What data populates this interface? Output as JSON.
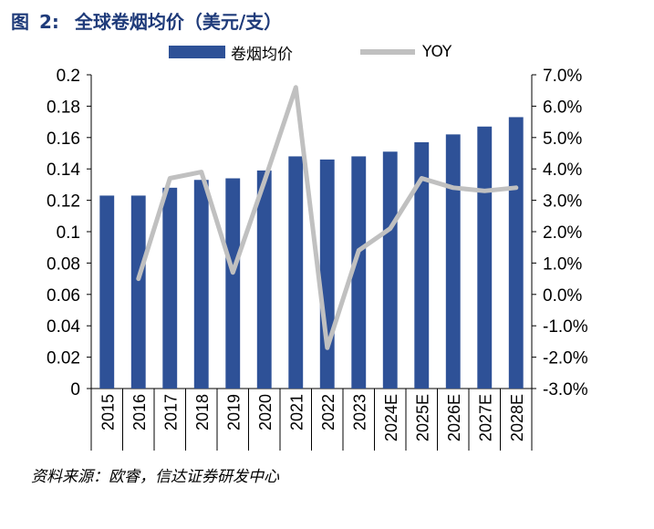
{
  "figure": {
    "label": "图",
    "number": "2:",
    "title": "全球卷烟均价（美元/支）"
  },
  "legend": {
    "bar_label": "卷烟均价",
    "line_label": "YOY"
  },
  "source": "资料来源：欧睿，信达证券研发中心",
  "colors": {
    "bar": "#2e5197",
    "line": "#c0c0c0",
    "title": "#1f3b7a"
  },
  "chart_data": {
    "type": "bar",
    "categories": [
      "2015",
      "2016",
      "2017",
      "2018",
      "2019",
      "2020",
      "2021",
      "2022",
      "2023",
      "2024E",
      "2025E",
      "2026E",
      "2027E",
      "2028E"
    ],
    "series": [
      {
        "name": "卷烟均价",
        "type": "bar",
        "axis": "left",
        "values": [
          0.123,
          0.123,
          0.128,
          0.133,
          0.134,
          0.139,
          0.148,
          0.146,
          0.148,
          0.151,
          0.157,
          0.162,
          0.167,
          0.173
        ]
      },
      {
        "name": "YOY",
        "type": "line",
        "axis": "right",
        "values": [
          null,
          0.5,
          3.7,
          3.9,
          0.7,
          3.6,
          6.6,
          -1.7,
          1.4,
          2.1,
          3.7,
          3.4,
          3.3,
          3.4
        ]
      }
    ],
    "y_left": {
      "ylim": [
        0,
        0.2
      ],
      "ticks": [
        0,
        0.02,
        0.04,
        0.06,
        0.08,
        0.1,
        0.12,
        0.14,
        0.16,
        0.18,
        0.2
      ],
      "tick_labels": [
        "0",
        "0.02",
        "0.04",
        "0.06",
        "0.08",
        "0.1",
        "0.12",
        "0.14",
        "0.16",
        "0.18",
        "0.2"
      ]
    },
    "y_right": {
      "ylim": [
        -3.0,
        7.0
      ],
      "ticks": [
        -3,
        -2,
        -1,
        0,
        1,
        2,
        3,
        4,
        5,
        6,
        7
      ],
      "tick_labels": [
        "-3.0%",
        "-2.0%",
        "-1.0%",
        "0.0%",
        "1.0%",
        "2.0%",
        "3.0%",
        "4.0%",
        "5.0%",
        "6.0%",
        "7.0%"
      ]
    },
    "grid": false,
    "legend_position": "top"
  }
}
